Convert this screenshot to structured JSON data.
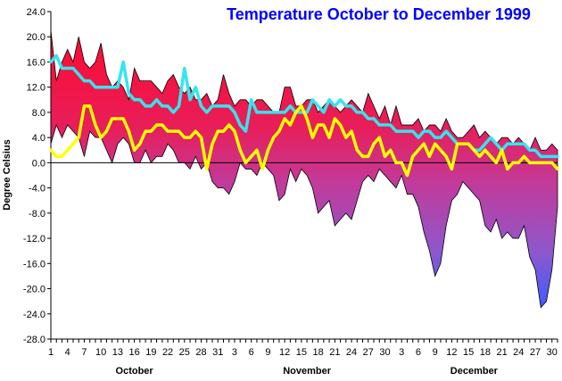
{
  "chart_data": {
    "type": "area",
    "title": "Temperature October to December 1999",
    "xlabel": "",
    "ylabel": "Degree Celsius",
    "ylim": [
      -28,
      24
    ],
    "yticks": [
      24,
      20,
      16,
      12,
      8,
      4,
      0,
      -4,
      -8,
      -12,
      -16,
      -20,
      -24,
      -28
    ],
    "ytick_labels": [
      "24.0",
      "20.0",
      "16.0",
      "12.0",
      "8.0",
      "4.0",
      "0.0",
      "-4.0",
      "-8.0",
      "-12.0",
      "-16.0",
      "-20.0",
      "-24.0",
      "-28.0"
    ],
    "x_tick_labels": [
      "1",
      "4",
      "7",
      "10",
      "13",
      "16",
      "19",
      "22",
      "25",
      "28",
      "31",
      "3",
      "6",
      "9",
      "12",
      "15",
      "18",
      "21",
      "24",
      "27",
      "30",
      "3",
      "6",
      "9",
      "12",
      "15",
      "18",
      "21",
      "24",
      "27",
      "30"
    ],
    "month_labels": [
      "October",
      "November",
      "December"
    ],
    "grid": false,
    "series": [
      {
        "role": "daily_max",
        "color": "#e8143c",
        "values": [
          21,
          13,
          16,
          18,
          16,
          20,
          16,
          15,
          16,
          19,
          14,
          12,
          13,
          12,
          10,
          15,
          13,
          13,
          13,
          12,
          11,
          13,
          14,
          12,
          11,
          12,
          10,
          10,
          11,
          9,
          10,
          14,
          11,
          9,
          10,
          10,
          9,
          10,
          10,
          9,
          8,
          8,
          12,
          12,
          9,
          9,
          10,
          10,
          8,
          9,
          10,
          9,
          8,
          9,
          10,
          9,
          8,
          11,
          9,
          7,
          9,
          6,
          9,
          6,
          6,
          6,
          7,
          5,
          6,
          6,
          5,
          7,
          5,
          4,
          4,
          5,
          6,
          4,
          5,
          4,
          3,
          4,
          4,
          3,
          4,
          3,
          2,
          4,
          2,
          2,
          3,
          2
        ]
      },
      {
        "role": "daily_min",
        "color": "#7a4fd6",
        "values": [
          3,
          6,
          4,
          6,
          5,
          4,
          1,
          5,
          4,
          4,
          2,
          0,
          3,
          4,
          3,
          0,
          0,
          2,
          0,
          1,
          1,
          3,
          2,
          0,
          0,
          -1,
          1,
          -1,
          0,
          -3,
          -4,
          -4,
          -5,
          -3,
          0,
          -1,
          -1,
          -2,
          0,
          -1,
          -2,
          -6,
          -5,
          -1,
          -3,
          -1,
          -2,
          -4,
          -8,
          -7,
          -6,
          -10,
          -9,
          -8,
          -9,
          -6,
          -3,
          -2,
          -3,
          -1,
          -2,
          -3,
          -4,
          -2,
          -5,
          -5,
          -7,
          -11,
          -14,
          -18,
          -16,
          -10,
          -6,
          -5,
          -3,
          -4,
          -5,
          -6,
          -10,
          -11,
          -9,
          -12,
          -11,
          -12,
          -12,
          -10,
          -15,
          -17,
          -23,
          -22,
          -17,
          -7
        ]
      },
      {
        "role": "line_cyan",
        "color": "#33e6ee",
        "values": [
          16,
          17,
          15,
          15,
          15,
          14,
          13,
          13,
          12,
          12,
          12,
          12,
          12,
          16,
          11,
          10,
          10,
          9,
          9,
          10,
          9,
          9,
          8,
          9,
          15,
          10,
          12,
          9,
          8,
          9,
          9,
          9,
          9,
          8,
          6,
          5,
          10,
          8,
          8,
          8,
          8,
          8,
          8,
          9,
          8,
          8,
          8,
          10,
          9,
          8,
          10,
          9,
          10,
          9,
          9,
          8,
          8,
          7,
          7,
          6,
          6,
          6,
          5,
          5,
          5,
          5,
          4,
          5,
          5,
          4,
          4,
          5,
          4,
          3,
          3,
          3,
          2,
          2,
          3,
          4,
          3,
          2,
          3,
          3,
          3,
          3,
          2,
          2,
          1,
          1,
          1,
          1
        ]
      },
      {
        "role": "line_yellow",
        "color": "#ffff00",
        "values": [
          2,
          1,
          1,
          2,
          3,
          4,
          9,
          9,
          6,
          4,
          5,
          7,
          7,
          7,
          5,
          2,
          3,
          5,
          5,
          6,
          6,
          5,
          5,
          5,
          4,
          4,
          5,
          4,
          -1,
          3,
          5,
          5,
          6,
          5,
          2,
          0,
          1,
          2,
          -1,
          2,
          4,
          5,
          7,
          6,
          8,
          9,
          7,
          4,
          6,
          6,
          4,
          7,
          6,
          4,
          5,
          2,
          1,
          1,
          3,
          4,
          1,
          2,
          0,
          0,
          -2,
          1,
          2,
          3,
          1,
          3,
          2,
          1,
          -1,
          3,
          3,
          3,
          2,
          1,
          2,
          1,
          0,
          2,
          -1,
          0,
          0,
          1,
          0,
          0,
          0,
          0,
          0,
          -1
        ]
      }
    ]
  }
}
